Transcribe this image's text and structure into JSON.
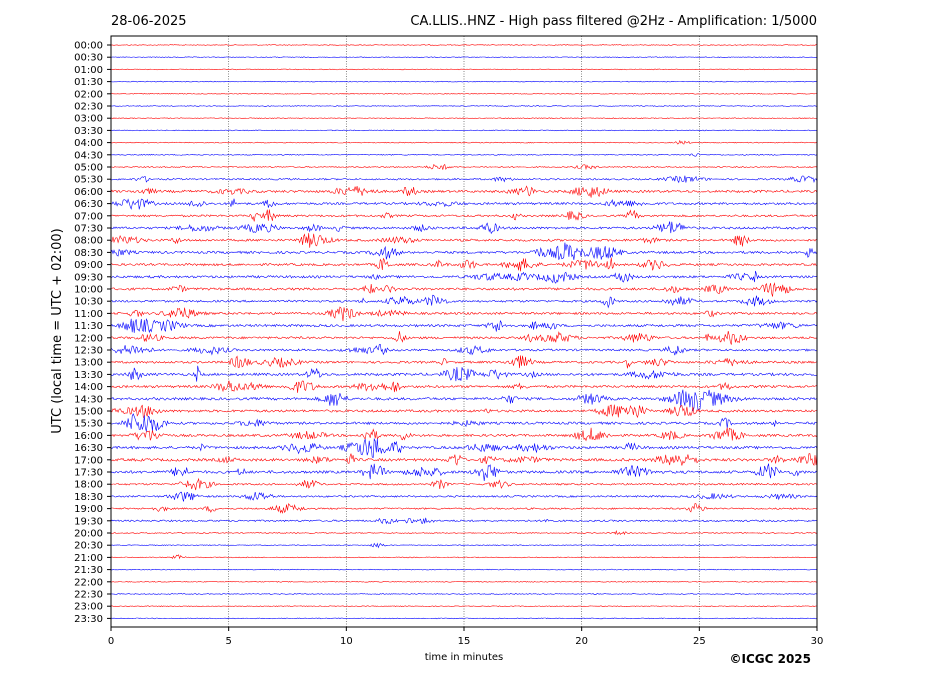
{
  "date": "28-06-2025",
  "header_title": "CA.LLIS..HNZ - High pass filtered @2Hz - Amplification: 1/5000",
  "copyright": "©ICGC 2025",
  "chart_data": {
    "type": "line",
    "title": "CA.LLIS..HNZ - High pass filtered @2Hz - Amplification: 1/5000",
    "xlabel": "time in minutes",
    "ylabel": "UTC (local time = UTC + 02:00)",
    "xlim": [
      0,
      30
    ],
    "x_ticks": [
      "0",
      "5",
      "10",
      "15",
      "20",
      "25",
      "30"
    ],
    "row_labels": [
      "00:00",
      "00:30",
      "01:00",
      "01:30",
      "02:00",
      "02:30",
      "03:00",
      "03:30",
      "04:00",
      "04:30",
      "05:00",
      "05:30",
      "06:00",
      "06:30",
      "07:00",
      "07:30",
      "08:00",
      "08:30",
      "09:00",
      "09:30",
      "10:00",
      "10:30",
      "11:00",
      "11:30",
      "12:00",
      "12:30",
      "13:00",
      "13:30",
      "14:00",
      "14:30",
      "15:00",
      "15:30",
      "16:00",
      "16:30",
      "17:00",
      "17:30",
      "18:00",
      "18:30",
      "19:00",
      "19:30",
      "20:00",
      "20:30",
      "21:00",
      "21:30",
      "22:00",
      "22:30",
      "23:00",
      "23:30"
    ],
    "trace_colors": [
      "#ff0000",
      "#0000ff"
    ],
    "row_activity": [
      0.05,
      0.05,
      0.05,
      0.05,
      0.05,
      0.05,
      0.06,
      0.06,
      0.08,
      0.12,
      0.15,
      0.3,
      0.55,
      0.5,
      0.45,
      0.5,
      0.5,
      0.55,
      0.5,
      0.55,
      0.55,
      0.45,
      0.5,
      0.55,
      0.5,
      0.45,
      0.5,
      0.6,
      0.55,
      0.6,
      0.55,
      0.55,
      0.55,
      0.6,
      0.65,
      0.65,
      0.35,
      0.35,
      0.3,
      0.35,
      0.1,
      0.08,
      0.08,
      0.07,
      0.07,
      0.07,
      0.06,
      0.06
    ],
    "grid": "vertical dotted at major ticks"
  }
}
